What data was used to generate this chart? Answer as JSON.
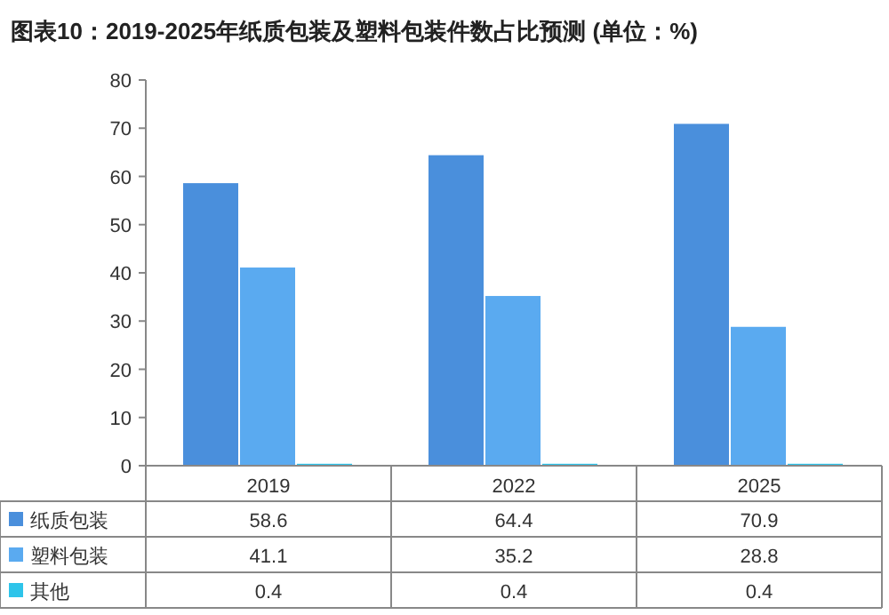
{
  "chart_data": {
    "type": "bar",
    "title": "图表10：2019-2025年纸质包装及塑料包装件数占比预测 (单位：%)",
    "categories": [
      "2019",
      "2022",
      "2025"
    ],
    "series": [
      {
        "name": "纸质包装",
        "color": "#4a8fdc",
        "values": [
          58.6,
          64.4,
          70.9
        ]
      },
      {
        "name": "塑料包装",
        "color": "#5aaaf0",
        "values": [
          41.1,
          35.2,
          28.8
        ]
      },
      {
        "name": "其他",
        "color": "#2ec4ea",
        "values": [
          0.4,
          0.4,
          0.4
        ]
      }
    ],
    "ylim": [
      0,
      80
    ],
    "yticks": [
      0,
      10,
      20,
      30,
      40,
      50,
      60,
      70,
      80
    ],
    "data_labels": true,
    "legend": "bottom",
    "grid": false
  }
}
